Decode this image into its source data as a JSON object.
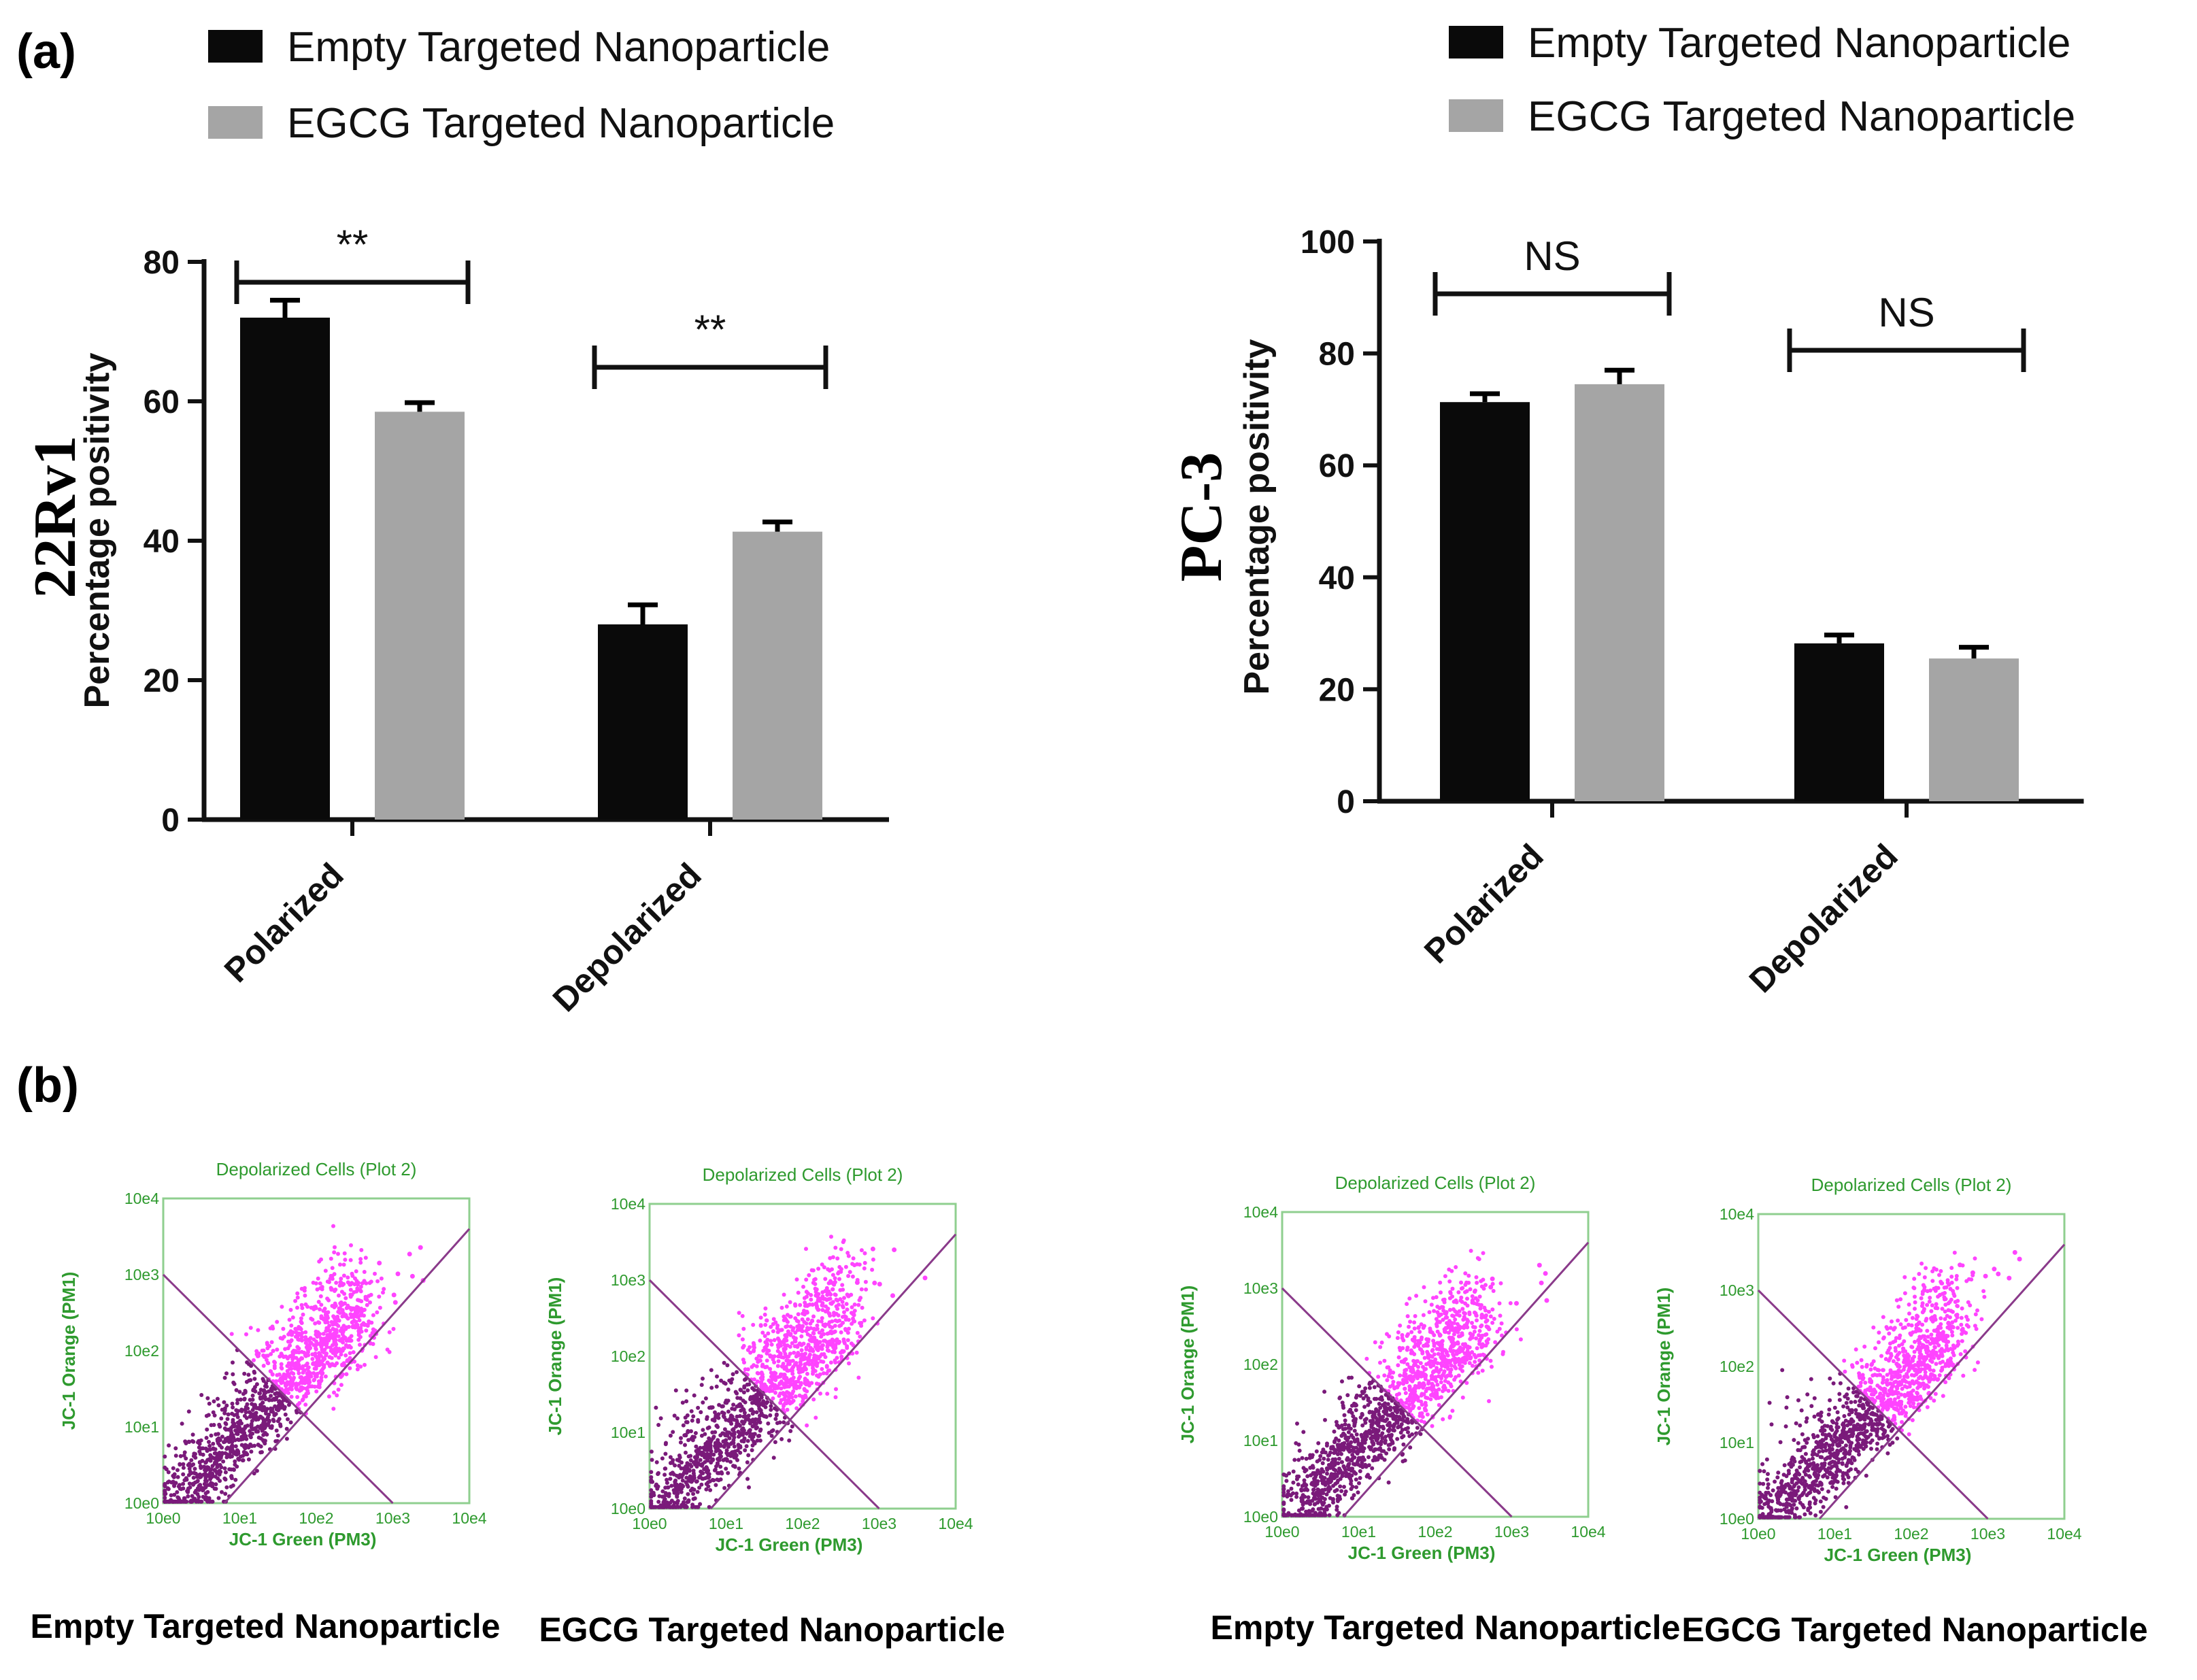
{
  "panel_a_label": "(a)",
  "panel_b_label": "(b)",
  "colors": {
    "empty": "#0a0a0a",
    "egcg": "#a5a5a5",
    "flow_axis": "#2e9a2e",
    "flow_gate": "#8a3a8a",
    "dots_dark": "#7a1a7a",
    "dots_light": "#ff44ff"
  },
  "chart_data": [
    {
      "type": "bar",
      "cell_line": "22Rv1",
      "ylabel": "Percentage positivity",
      "categories": [
        "Polarized",
        "Depolarized"
      ],
      "ylim": [
        0,
        80
      ],
      "yticks": [
        0,
        20,
        40,
        60,
        80
      ],
      "series": [
        {
          "name": "Empty Targeted Nanoparticle",
          "color": "#0a0a0a",
          "values": [
            72,
            28
          ],
          "errors": [
            2.5,
            2.8
          ]
        },
        {
          "name": "EGCG Targeted Nanoparticle",
          "color": "#a5a5a5",
          "values": [
            58.5,
            41.3
          ],
          "errors": [
            1.3,
            1.4
          ]
        }
      ],
      "significance": [
        "**",
        "**"
      ],
      "legend": [
        "Empty Targeted Nanoparticle",
        "EGCG Targeted Nanoparticle"
      ]
    },
    {
      "type": "bar",
      "cell_line": "PC-3",
      "ylabel": "Percentage positivity",
      "categories": [
        "Polarized",
        "Depolarized"
      ],
      "ylim": [
        0,
        100
      ],
      "yticks": [
        0,
        20,
        40,
        60,
        80,
        100
      ],
      "series": [
        {
          "name": "Empty Targeted Nanoparticle",
          "color": "#0a0a0a",
          "values": [
            71.3,
            28.2
          ],
          "errors": [
            1.5,
            1.5
          ]
        },
        {
          "name": "EGCG Targeted Nanoparticle",
          "color": "#a5a5a5",
          "values": [
            74.5,
            25.5
          ],
          "errors": [
            2.5,
            2.0
          ]
        }
      ],
      "significance": [
        "NS",
        "NS"
      ],
      "legend": [
        "Empty Targeted Nanoparticle",
        "EGCG Targeted Nanoparticle"
      ]
    },
    {
      "type": "scatter",
      "title": "Depolarized Cells (Plot 2)",
      "xlabel": "JC-1 Green (PM3)",
      "ylabel": "JC-1 Orange (PM1)",
      "xscale": "log",
      "yscale": "log",
      "xlim_log10": [
        0,
        4
      ],
      "ylim_log10": [
        0,
        4
      ],
      "ticks": [
        "10e0",
        "10e1",
        "10e2",
        "10e3",
        "10e4"
      ],
      "plots": [
        {
          "caption": "Empty Targeted Nanoparticle",
          "seed": 11,
          "upper_density": 0.55
        },
        {
          "caption": "EGCG Targeted Nanoparticle",
          "seed": 23,
          "upper_density": 0.7
        },
        {
          "caption": "Empty Targeted Nanoparticle",
          "seed": 37,
          "upper_density": 0.6
        },
        {
          "caption": "EGCG Targeted Nanoparticle",
          "seed": 51,
          "upper_density": 0.5
        }
      ]
    }
  ]
}
